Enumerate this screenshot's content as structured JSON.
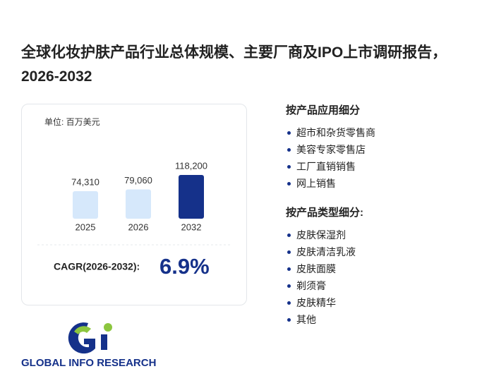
{
  "title": "全球化妆护肤产品行业总体规模、主要厂商及IPO上市调研报告，2026-2032",
  "chart_data": {
    "type": "bar",
    "unit_label": "单位: 百万美元",
    "categories": [
      "2025",
      "2026",
      "2032"
    ],
    "values": [
      74310,
      79060,
      118200
    ],
    "value_labels": [
      "74,310",
      "79,060",
      "118,200"
    ],
    "colors": [
      "#d6e8fb",
      "#d6e8fb",
      "#15318a"
    ]
  },
  "cagr": {
    "label": "CAGR(2026-2032):",
    "value": "6.9%"
  },
  "segments": [
    {
      "heading": "按产品应用细分",
      "items": [
        "超市和杂货零售商",
        "美容专家零售店",
        "工厂直销销售",
        "网上销售"
      ]
    },
    {
      "heading": "按产品类型细分:",
      "items": [
        "皮肤保湿剂",
        "皮肤清洁乳液",
        "皮肤面膜",
        "剃须膏",
        "皮肤精华",
        "其他"
      ]
    }
  ],
  "logo_text": "GLOBAL INFO RESEARCH"
}
